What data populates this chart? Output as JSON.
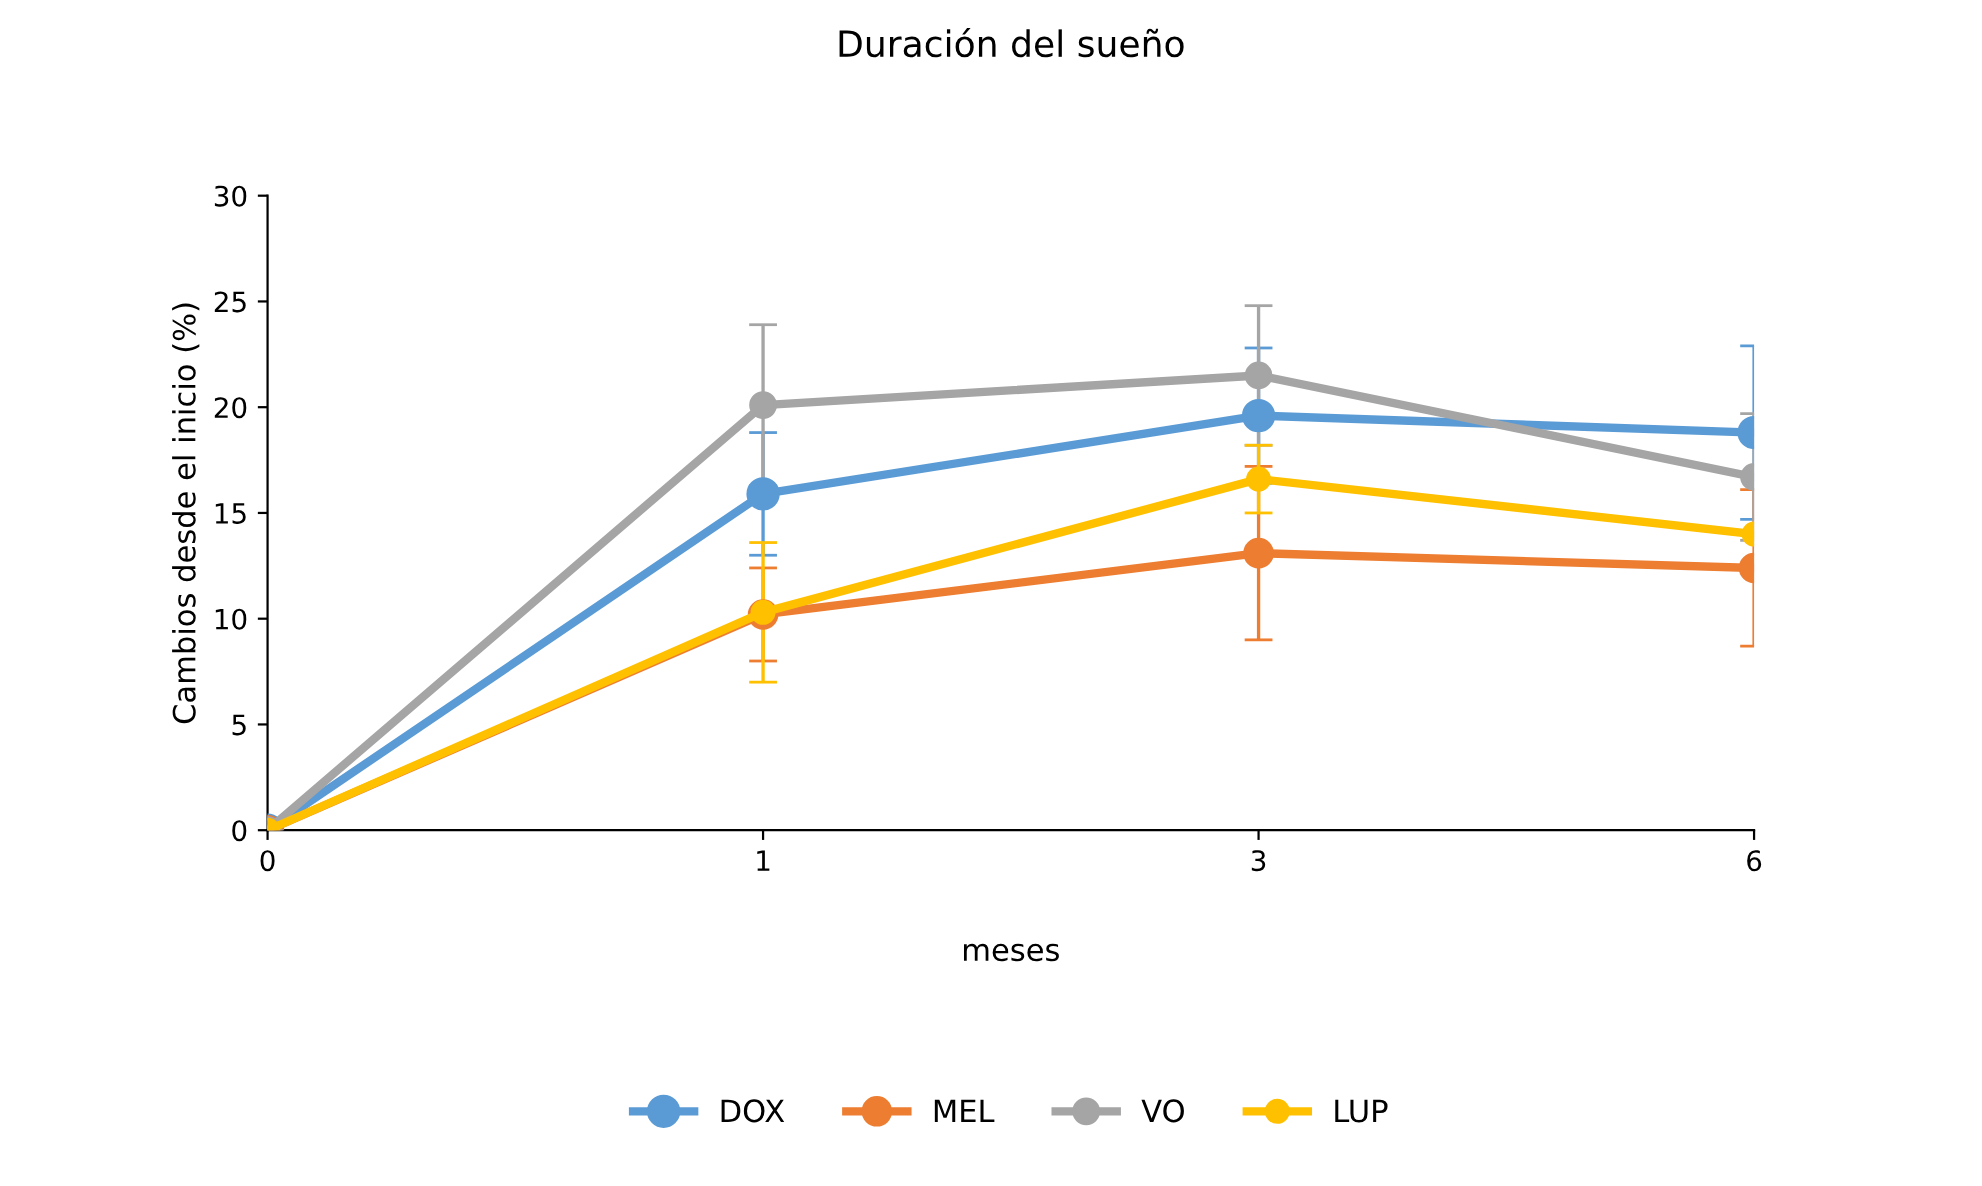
{
  "chart_data": {
    "type": "line",
    "title": "Duración del sueño",
    "xlabel": "meses",
    "ylabel": "Cambios desde el inicio (%)",
    "categories": [
      "0",
      "1",
      "3",
      "6"
    ],
    "series": [
      {
        "name": "DOX",
        "color": "#5b9bd5",
        "values": [
          0,
          15.9,
          19.6,
          18.8
        ],
        "errors": [
          null,
          2.9,
          3.2,
          4.1
        ]
      },
      {
        "name": "MEL",
        "color": "#ed7d31",
        "values": [
          0,
          10.2,
          13.1,
          12.4
        ],
        "errors": [
          null,
          2.2,
          4.1,
          3.7
        ]
      },
      {
        "name": "VO",
        "color": "#a5a5a5",
        "values": [
          0,
          20.1,
          21.5,
          16.7
        ],
        "errors": [
          null,
          3.8,
          3.3,
          3.0
        ]
      },
      {
        "name": "LUP",
        "color": "#ffc000",
        "values": [
          0,
          10.3,
          16.6,
          14.0
        ],
        "errors": [
          null,
          3.3,
          1.6,
          null
        ]
      }
    ],
    "ylim": [
      0,
      30
    ],
    "yticks": [
      0,
      5,
      10,
      15,
      20,
      25,
      30
    ],
    "grid": false,
    "legend": "bottom",
    "marker": "circle",
    "line_style": "solid"
  }
}
